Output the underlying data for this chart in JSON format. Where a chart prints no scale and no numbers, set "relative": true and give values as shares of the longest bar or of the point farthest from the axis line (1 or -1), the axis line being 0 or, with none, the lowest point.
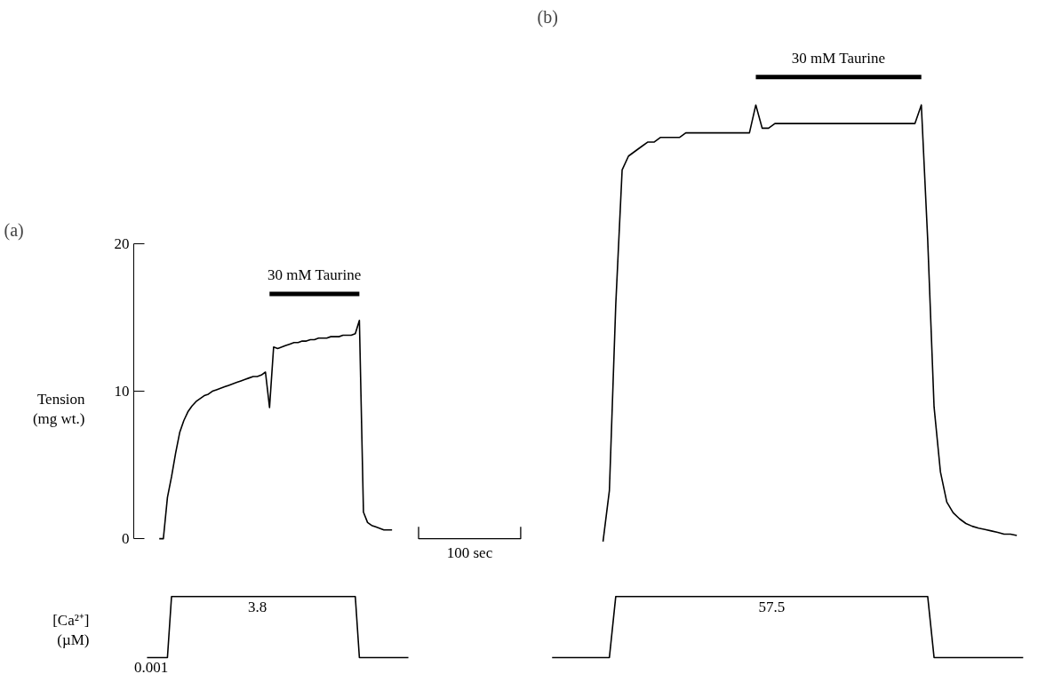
{
  "chart_data": [
    {
      "type": "line",
      "title": "(a)",
      "ylabel": "Tension\n(mg wt.)",
      "ylim": [
        0,
        20
      ],
      "yticks": [
        0,
        10,
        20
      ],
      "tick_labels": "y",
      "annotations": [
        "30 mM Taurine",
        "100 sec"
      ],
      "categories": [
        null,
        null,
        null,
        null,
        null,
        null,
        null,
        null,
        null,
        null,
        null,
        null,
        null,
        null,
        null,
        null,
        null,
        null,
        null,
        null,
        null,
        null,
        null,
        null,
        null,
        null,
        null,
        null,
        null,
        null,
        null,
        null,
        null,
        null,
        null,
        null,
        null,
        null,
        null,
        null,
        null,
        null,
        null,
        null,
        null,
        null,
        null,
        null,
        null,
        null,
        null,
        null,
        null,
        null,
        null,
        null,
        null,
        null,
        null,
        null,
        null,
        null,
        null,
        null,
        null
      ],
      "series": [
        {
          "color": "#000000",
          "values": [
            null,
            null,
            null,
            0,
            0,
            2.8,
            4.2,
            5.8,
            7.2,
            8.0,
            8.6,
            9.0,
            9.3,
            9.5,
            9.7,
            9.8,
            10.0,
            10.1,
            10.2,
            10.3,
            10.4,
            10.5,
            10.6,
            10.7,
            10.8,
            10.9,
            11.0,
            11.0,
            11.1,
            11.3,
            8.9,
            13.0,
            12.9,
            13.0,
            13.1,
            13.2,
            13.3,
            13.3,
            13.4,
            13.4,
            13.5,
            13.5,
            13.6,
            13.6,
            13.6,
            13.7,
            13.7,
            13.7,
            13.8,
            13.8,
            13.8,
            13.9,
            14.8,
            1.8,
            1.1,
            0.9,
            0.8,
            0.7,
            0.6,
            0.6,
            0.6,
            null,
            null,
            null,
            null
          ]
        },
        {
          "color": "#000000",
          "values": [
            null,
            null,
            null,
            null,
            null,
            null,
            null,
            null,
            null,
            null,
            null,
            null,
            null,
            null,
            null,
            null,
            null,
            null,
            null,
            null,
            null,
            null,
            null,
            null,
            null,
            null,
            null,
            null,
            null,
            null,
            16.6,
            16.6,
            16.6,
            16.6,
            16.6,
            16.6,
            16.6,
            16.6,
            16.6,
            16.6,
            16.6,
            16.6,
            16.6,
            16.6,
            16.6,
            16.6,
            16.6,
            16.6,
            16.6,
            16.6,
            16.6,
            16.6,
            16.6,
            null,
            null,
            null,
            null,
            null,
            null,
            null,
            null,
            null,
            null,
            null,
            null
          ]
        }
      ]
    },
    {
      "type": "line",
      "ylabel": "[Ca²⁺]\n(µM)",
      "color": "#000000",
      "tick_labels": false,
      "categories": [
        null,
        null,
        null,
        null,
        null,
        null,
        null,
        null,
        null,
        null,
        null,
        null,
        null,
        null,
        null,
        null,
        null,
        null,
        null,
        null,
        null,
        null,
        null,
        null,
        null,
        null,
        null,
        null,
        null,
        null,
        null,
        null,
        null,
        null,
        null,
        null,
        null,
        null,
        null,
        null,
        null,
        null,
        null,
        null,
        null,
        null,
        null,
        null,
        null,
        null,
        null,
        null,
        null,
        null,
        null,
        null,
        null,
        null,
        null,
        null,
        null,
        null,
        null,
        null,
        null
      ],
      "values": [
        0.001,
        0.001,
        0.001,
        0.001,
        0.001,
        0.001,
        3.8,
        3.8,
        3.8,
        3.8,
        3.8,
        3.8,
        3.8,
        3.8,
        3.8,
        3.8,
        3.8,
        3.8,
        3.8,
        3.8,
        3.8,
        3.8,
        3.8,
        3.8,
        3.8,
        3.8,
        3.8,
        3.8,
        3.8,
        3.8,
        3.8,
        3.8,
        3.8,
        3.8,
        3.8,
        3.8,
        3.8,
        3.8,
        3.8,
        3.8,
        3.8,
        3.8,
        3.8,
        3.8,
        3.8,
        3.8,
        3.8,
        3.8,
        3.8,
        3.8,
        3.8,
        3.8,
        0.001,
        0.001,
        0.001,
        0.001,
        0.001,
        0.001,
        0.001,
        0.001,
        0.001,
        0.001,
        0.001,
        0.001,
        0.001
      ],
      "value_labels": [
        null,
        "0.001",
        null,
        null,
        null,
        null,
        null,
        null,
        null,
        null,
        null,
        null,
        null,
        null,
        null,
        null,
        null,
        null,
        null,
        null,
        null,
        null,
        null,
        null,
        null,
        null,
        null,
        "3.8",
        null,
        null,
        null,
        null,
        null,
        null,
        null,
        null,
        null,
        null,
        null,
        null,
        null,
        null,
        null,
        null,
        null,
        null,
        null,
        null,
        null,
        null,
        null,
        null,
        null,
        null,
        null,
        null,
        null,
        null,
        null,
        null,
        null,
        null,
        null,
        null,
        null
      ]
    },
    {
      "type": "line",
      "title": "(b)",
      "relative": true,
      "tick_labels": false,
      "annotations": [
        "30 mM Taurine"
      ],
      "categories": [
        null,
        null,
        null,
        null,
        null,
        null,
        null,
        null,
        null,
        null,
        null,
        null,
        null,
        null,
        null,
        null,
        null,
        null,
        null,
        null,
        null,
        null,
        null,
        null,
        null,
        null,
        null,
        null,
        null,
        null,
        null,
        null,
        null,
        null,
        null,
        null,
        null,
        null,
        null,
        null,
        null,
        null,
        null,
        null,
        null,
        null,
        null,
        null,
        null,
        null,
        null,
        null,
        null,
        null,
        null,
        null,
        null,
        null,
        null,
        null,
        null,
        null,
        null,
        null,
        null,
        null,
        null,
        null,
        null,
        null,
        null,
        null,
        null,
        null,
        null
      ],
      "series": [
        {
          "color": "#000000",
          "values": [
            null,
            null,
            null,
            null,
            null,
            null,
            null,
            null,
            0,
            0.11,
            0.51,
            0.8,
            0.83,
            0.84,
            0.85,
            0.86,
            0.86,
            0.87,
            0.87,
            0.87,
            0.87,
            0.88,
            0.88,
            0.88,
            0.88,
            0.88,
            0.88,
            0.88,
            0.88,
            0.88,
            0.88,
            0.88,
            0.94,
            0.89,
            0.89,
            0.9,
            0.9,
            0.9,
            0.9,
            0.9,
            0.9,
            0.9,
            0.9,
            0.9,
            0.9,
            0.9,
            0.9,
            0.9,
            0.9,
            0.9,
            0.9,
            0.9,
            0.9,
            0.9,
            0.9,
            0.9,
            0.9,
            0.9,
            0.94,
            0.65,
            0.29,
            0.15,
            0.085,
            0.062,
            0.049,
            0.039,
            0.033,
            0.029,
            0.026,
            0.023,
            0.02,
            0.016,
            0.016,
            0.013,
            null
          ]
        },
        {
          "color": "#000000",
          "values": [
            null,
            null,
            null,
            null,
            null,
            null,
            null,
            null,
            null,
            null,
            null,
            null,
            null,
            null,
            null,
            null,
            null,
            null,
            null,
            null,
            null,
            null,
            null,
            null,
            null,
            null,
            null,
            null,
            null,
            null,
            null,
            null,
            1,
            1,
            1,
            1,
            1,
            1,
            1,
            1,
            1,
            1,
            1,
            1,
            1,
            1,
            1,
            1,
            1,
            1,
            1,
            1,
            1,
            1,
            1,
            1,
            1,
            1,
            1,
            null,
            null,
            null,
            null,
            null,
            null,
            null,
            null,
            null,
            null,
            null,
            null,
            null,
            null,
            null,
            null
          ]
        }
      ]
    },
    {
      "type": "line",
      "color": "#000000",
      "tick_labels": false,
      "relative": true,
      "annotations": [
        "57.5"
      ],
      "categories": [
        null,
        null,
        null,
        null,
        null,
        null,
        null,
        null,
        null,
        null,
        null,
        null,
        null,
        null,
        null,
        null,
        null,
        null,
        null,
        null,
        null,
        null,
        null,
        null,
        null,
        null,
        null,
        null,
        null,
        null,
        null,
        null,
        null,
        null,
        null,
        null,
        null,
        null,
        null,
        null,
        null,
        null,
        null,
        null,
        null,
        null,
        null,
        null,
        null,
        null,
        null,
        null,
        null,
        null,
        null,
        null,
        null,
        null,
        null,
        null,
        null,
        null,
        null,
        null,
        null,
        null,
        null,
        null,
        null,
        null,
        null,
        null,
        null,
        null,
        null
      ],
      "values": [
        0,
        0,
        0,
        0,
        0,
        0,
        0,
        0,
        0,
        0,
        1,
        1,
        1,
        1,
        1,
        1,
        1,
        1,
        1,
        1,
        1,
        1,
        1,
        1,
        1,
        1,
        1,
        1,
        1,
        1,
        1,
        1,
        1,
        1,
        1,
        1,
        1,
        1,
        1,
        1,
        1,
        1,
        1,
        1,
        1,
        1,
        1,
        1,
        1,
        1,
        1,
        1,
        1,
        1,
        1,
        1,
        1,
        1,
        1,
        1,
        0,
        0,
        0,
        0,
        0,
        0,
        0,
        0,
        0,
        0,
        0,
        0,
        0,
        0,
        0
      ]
    }
  ]
}
